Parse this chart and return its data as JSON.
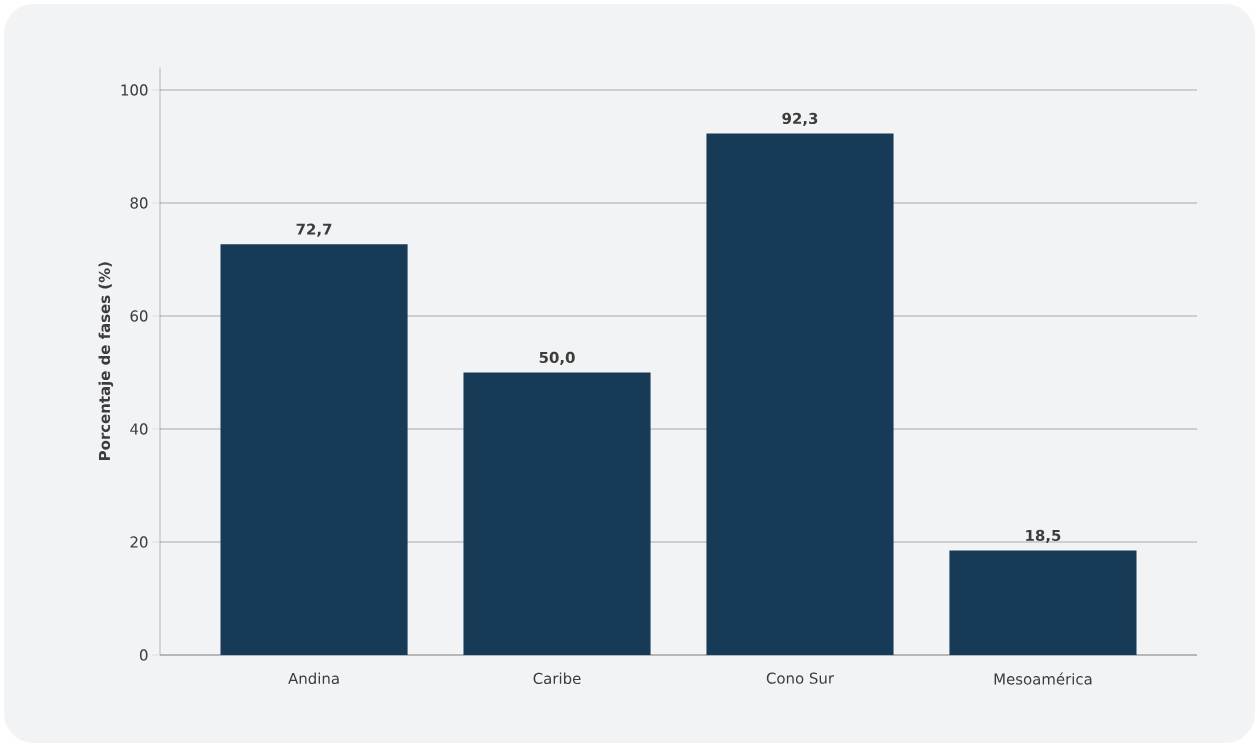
{
  "chart_data": {
    "type": "bar",
    "ylabel": "Porcentaje de fases (%)",
    "categories": [
      "Andina",
      "Caribe",
      "Cono Sur",
      "Mesoamérica"
    ],
    "values": [
      72.7,
      50.0,
      92.3,
      18.5
    ],
    "value_labels": [
      "72,7",
      "50,0",
      "92,3",
      "18,5"
    ],
    "color": "#173b56",
    "ylim": [
      0,
      104
    ],
    "yticks": [
      0,
      20,
      40,
      60,
      80,
      100
    ],
    "grid": "y"
  }
}
